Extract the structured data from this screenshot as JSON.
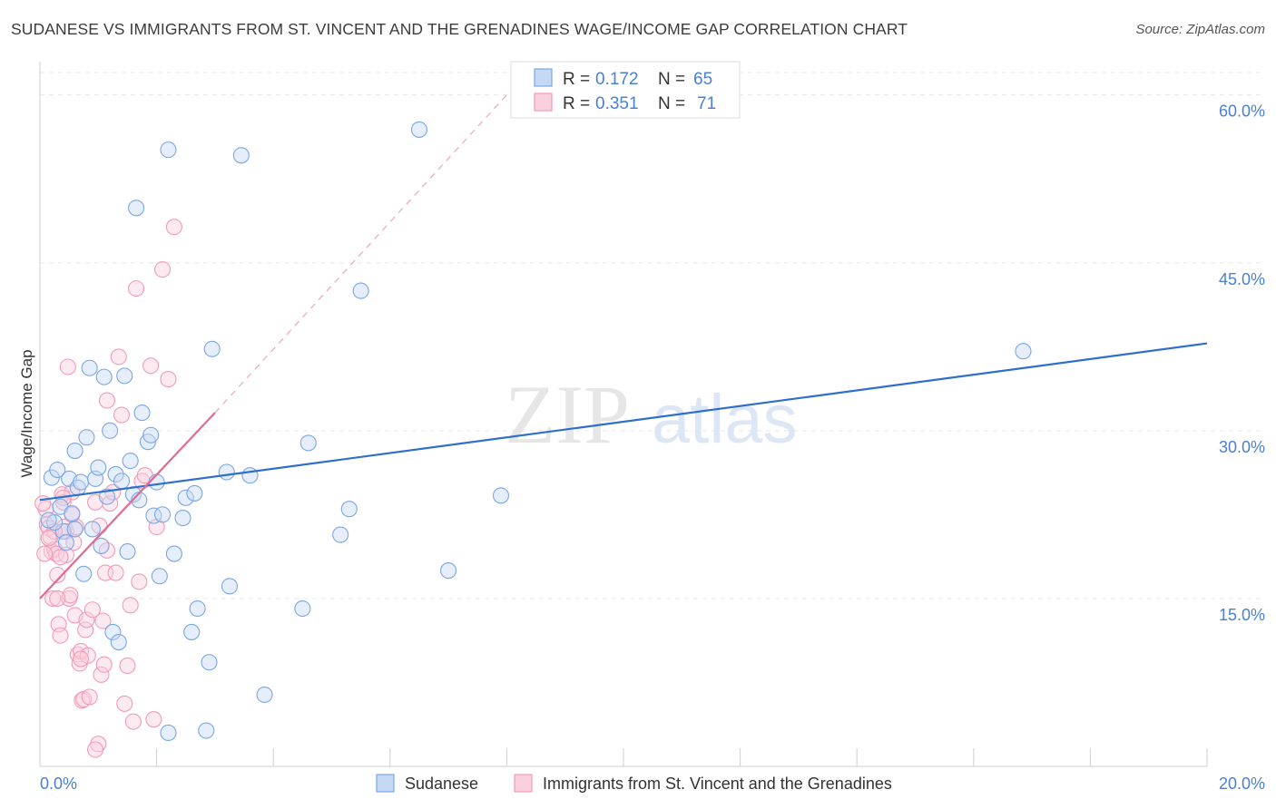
{
  "chart_data": {
    "type": "scatter",
    "title": "SUDANESE VS IMMIGRANTS FROM ST. VINCENT AND THE GRENADINES WAGE/INCOME GAP CORRELATION CHART",
    "source": "Source: ZipAtlas.com",
    "xlabel": "",
    "ylabel": "Wage/Income Gap",
    "xlim": [
      0,
      20
    ],
    "ylim": [
      0,
      62
    ],
    "x_tick_labels": [
      "0.0%",
      "20.0%"
    ],
    "y_ticks": [
      15,
      30,
      45,
      60
    ],
    "y_tick_labels": [
      "15.0%",
      "30.0%",
      "45.0%",
      "60.0%"
    ],
    "watermark": "ZIPatlas",
    "colors": {
      "blue": "#7aa6e6",
      "blue_line": "#2f6fcc",
      "pink": "#f29bb6",
      "pink_line": "#e06b92",
      "tick": "#4a7fd4"
    },
    "legend": [
      {
        "r_label": "R =",
        "r": "0.172",
        "n_label": "N =",
        "n": "65"
      },
      {
        "r_label": "R =",
        "r": "0.351",
        "n_label": "N =",
        "n": "71"
      }
    ],
    "series": [
      {
        "name": "Sudanese",
        "color": "blue",
        "trend": {
          "x": [
            0,
            20
          ],
          "y": [
            23.8,
            37.8
          ]
        },
        "points": [
          [
            0.2,
            25.8
          ],
          [
            0.3,
            26.5
          ],
          [
            0.35,
            23.2
          ],
          [
            0.4,
            21.0
          ],
          [
            0.45,
            20.0
          ],
          [
            0.5,
            25.7
          ],
          [
            0.55,
            22.6
          ],
          [
            0.6,
            28.2
          ],
          [
            0.65,
            24.9
          ],
          [
            0.7,
            25.4
          ],
          [
            0.75,
            17.2
          ],
          [
            0.8,
            29.4
          ],
          [
            0.85,
            35.6
          ],
          [
            0.9,
            21.2
          ],
          [
            0.95,
            25.7
          ],
          [
            1.0,
            26.7
          ],
          [
            1.05,
            19.7
          ],
          [
            1.1,
            34.8
          ],
          [
            1.2,
            30.0
          ],
          [
            1.25,
            12.0
          ],
          [
            1.3,
            26.1
          ],
          [
            1.35,
            11.1
          ],
          [
            1.4,
            25.5
          ],
          [
            1.45,
            34.9
          ],
          [
            1.5,
            19.2
          ],
          [
            1.55,
            27.3
          ],
          [
            1.6,
            24.3
          ],
          [
            1.65,
            49.9
          ],
          [
            1.7,
            23.8
          ],
          [
            1.75,
            31.6
          ],
          [
            1.85,
            29.0
          ],
          [
            1.9,
            29.6
          ],
          [
            1.95,
            22.4
          ],
          [
            2.0,
            25.4
          ],
          [
            2.05,
            17.0
          ],
          [
            2.1,
            22.5
          ],
          [
            2.2,
            55.1
          ],
          [
            2.3,
            19.0
          ],
          [
            2.45,
            22.2
          ],
          [
            2.5,
            24.0
          ],
          [
            2.6,
            12.0
          ],
          [
            2.65,
            24.4
          ],
          [
            2.7,
            14.1
          ],
          [
            2.9,
            9.3
          ],
          [
            2.95,
            37.3
          ],
          [
            3.2,
            26.3
          ],
          [
            3.25,
            16.1
          ],
          [
            3.45,
            54.6
          ],
          [
            3.6,
            26.0
          ],
          [
            3.85,
            6.4
          ],
          [
            4.5,
            14.1
          ],
          [
            4.6,
            28.9
          ],
          [
            5.15,
            20.7
          ],
          [
            5.3,
            23.0
          ],
          [
            5.5,
            42.5
          ],
          [
            6.5,
            56.9
          ],
          [
            7.0,
            17.5
          ],
          [
            7.9,
            24.2
          ],
          [
            16.85,
            37.1
          ],
          [
            0.25,
            21.8
          ],
          [
            0.6,
            21.2
          ],
          [
            1.15,
            24.1
          ],
          [
            2.85,
            3.2
          ],
          [
            2.2,
            3.0
          ],
          [
            0.15,
            22.0
          ]
        ]
      },
      {
        "name": "Immigrants from St. Vincent and the Grenadines",
        "color": "pink",
        "trend": {
          "x": [
            0,
            3.0
          ],
          "y": [
            15.0,
            31.6
          ]
        },
        "trend_ext": {
          "x": [
            3.0,
            8.0
          ],
          "y": [
            31.6,
            60.0
          ]
        },
        "points": [
          [
            0.1,
            23.0
          ],
          [
            0.12,
            21.6
          ],
          [
            0.15,
            21.3
          ],
          [
            0.18,
            20.5
          ],
          [
            0.2,
            19.2
          ],
          [
            0.22,
            15.0
          ],
          [
            0.25,
            19.4
          ],
          [
            0.28,
            19.0
          ],
          [
            0.3,
            17.1
          ],
          [
            0.32,
            12.7
          ],
          [
            0.35,
            11.7
          ],
          [
            0.38,
            24.3
          ],
          [
            0.4,
            23.6
          ],
          [
            0.42,
            21.4
          ],
          [
            0.45,
            21.0
          ],
          [
            0.48,
            35.7
          ],
          [
            0.5,
            15.0
          ],
          [
            0.52,
            15.3
          ],
          [
            0.55,
            24.5
          ],
          [
            0.58,
            20.0
          ],
          [
            0.6,
            13.5
          ],
          [
            0.62,
            21.4
          ],
          [
            0.65,
            10.0
          ],
          [
            0.68,
            9.2
          ],
          [
            0.7,
            10.3
          ],
          [
            0.72,
            5.9
          ],
          [
            0.75,
            6.0
          ],
          [
            0.78,
            12.2
          ],
          [
            0.8,
            13.1
          ],
          [
            0.82,
            9.9
          ],
          [
            0.85,
            6.2
          ],
          [
            0.9,
            14.0
          ],
          [
            0.95,
            23.6
          ],
          [
            1.0,
            2.0
          ],
          [
            1.05,
            8.2
          ],
          [
            1.08,
            13.0
          ],
          [
            1.1,
            9.1
          ],
          [
            1.12,
            17.3
          ],
          [
            1.15,
            32.7
          ],
          [
            1.2,
            23.5
          ],
          [
            1.25,
            24.5
          ],
          [
            1.3,
            17.3
          ],
          [
            1.35,
            36.6
          ],
          [
            1.4,
            31.4
          ],
          [
            1.45,
            5.6
          ],
          [
            1.5,
            9.0
          ],
          [
            1.55,
            14.4
          ],
          [
            1.6,
            4.0
          ],
          [
            1.65,
            42.7
          ],
          [
            1.7,
            16.5
          ],
          [
            1.75,
            25.5
          ],
          [
            1.8,
            26.0
          ],
          [
            1.9,
            35.8
          ],
          [
            1.95,
            4.2
          ],
          [
            2.0,
            21.4
          ],
          [
            2.1,
            44.4
          ],
          [
            2.2,
            34.6
          ],
          [
            2.3,
            48.2
          ],
          [
            1.15,
            19.3
          ],
          [
            0.55,
            22.5
          ],
          [
            0.45,
            18.9
          ],
          [
            0.35,
            18.7
          ],
          [
            0.25,
            21.0
          ],
          [
            0.15,
            20.4
          ],
          [
            0.05,
            23.5
          ],
          [
            0.08,
            19.0
          ],
          [
            0.95,
            1.5
          ],
          [
            0.7,
            9.6
          ],
          [
            0.3,
            15.0
          ],
          [
            1.02,
            21.5
          ],
          [
            0.4,
            24.0
          ]
        ]
      }
    ],
    "bottom_legend": [
      "Sudanese",
      "Immigrants from St. Vincent and the Grenadines"
    ]
  }
}
